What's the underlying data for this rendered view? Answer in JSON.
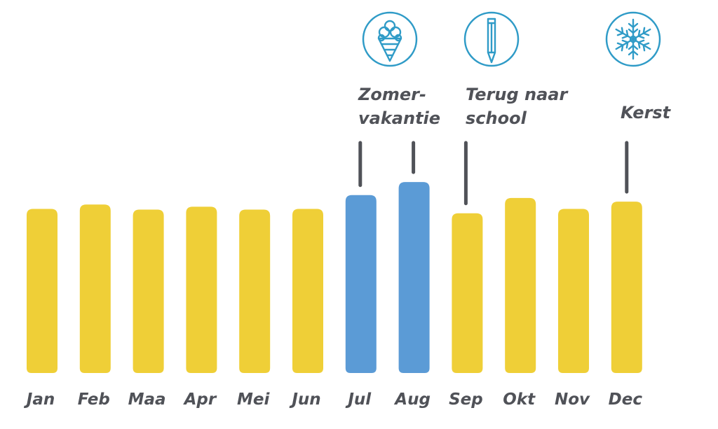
{
  "chart_data": {
    "type": "bar",
    "title": "",
    "xlabel": "",
    "ylabel": "",
    "categories": [
      "Jan",
      "Feb",
      "Maa",
      "Apr",
      "Mei",
      "Jun",
      "Jul",
      "Aug",
      "Sep",
      "Okt",
      "Nov",
      "Dec"
    ],
    "values": [
      226,
      232,
      225,
      229,
      225,
      226,
      245,
      263,
      220,
      241,
      226,
      236
    ],
    "highlighted": [
      "Jul",
      "Aug"
    ],
    "ylim": [
      0,
      265
    ],
    "grid": false,
    "colors": {
      "default": "#efcf37",
      "highlight": "#5b9bd6",
      "text": "#505258",
      "icon": "#2f9bc7"
    },
    "annotations": [
      {
        "lines": [
          "Zomer-",
          "vakantie"
        ],
        "categories": [
          "Jul",
          "Aug"
        ],
        "icon": "ice-cream-icon"
      },
      {
        "lines": [
          "Terug naar",
          "school"
        ],
        "categories": [
          "Sep"
        ],
        "icon": "pencil-icon"
      },
      {
        "lines": [
          "Kerst"
        ],
        "categories": [
          "Dec"
        ],
        "icon": "snowflake-icon"
      }
    ]
  }
}
